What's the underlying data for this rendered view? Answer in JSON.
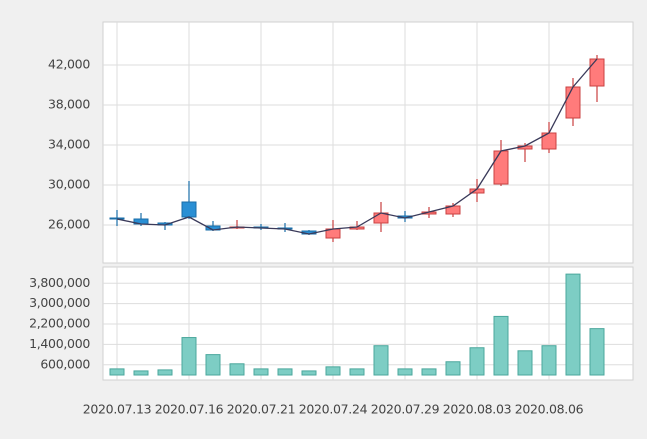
{
  "chart_data": {
    "type": "candlestick",
    "categories": [
      "2020.07.13",
      null,
      null,
      "2020.07.16",
      null,
      null,
      "2020.07.21",
      null,
      null,
      "2020.07.24",
      null,
      null,
      "2020.07.29",
      null,
      null,
      "2020.08.03",
      null,
      null,
      "2020.08.06",
      null,
      null
    ],
    "open": [
      26700,
      26600,
      26200,
      28300,
      25900,
      25700,
      25800,
      25700,
      25400,
      24700,
      25600,
      26200,
      26900,
      27100,
      27100,
      29200,
      30100,
      33600,
      33600,
      36700,
      39900
    ],
    "high": [
      27500,
      27200,
      26300,
      30400,
      26400,
      26500,
      26100,
      26200,
      25500,
      26500,
      26400,
      28300,
      27400,
      27800,
      28200,
      30600,
      34500,
      34200,
      36300,
      40700,
      43000
    ],
    "low": [
      25900,
      25900,
      25500,
      26600,
      25400,
      25600,
      25500,
      25300,
      25000,
      24300,
      25500,
      25300,
      26300,
      26700,
      26800,
      28300,
      29900,
      32300,
      33200,
      35900,
      38300
    ],
    "close": [
      26600,
      26100,
      26000,
      26800,
      25500,
      25800,
      25700,
      25600,
      25100,
      25600,
      25800,
      27200,
      26700,
      27300,
      27900,
      29600,
      33400,
      33900,
      35200,
      39800,
      42600
    ],
    "up_color": "#ff7b7b",
    "down_color": "#2a8fd4",
    "line_color": "#3a3a5a",
    "ylim": [
      22200,
      46300
    ],
    "yticks": [
      {
        "value": 26000,
        "label": "26,000"
      },
      {
        "value": 30000,
        "label": "30,000"
      },
      {
        "value": 34000,
        "label": "34,000"
      },
      {
        "value": 38000,
        "label": "38,000"
      },
      {
        "value": 42000,
        "label": "42,000"
      }
    ],
    "grid": true,
    "volume": {
      "type": "bar",
      "values": [
        440000,
        360000,
        400000,
        1670000,
        1000000,
        640000,
        440000,
        440000,
        360000,
        520000,
        440000,
        1350000,
        440000,
        440000,
        720000,
        1270000,
        2500000,
        1150000,
        1350000,
        4160000,
        2020000
      ],
      "color": "#7dcdc4",
      "ylim": [
        200000,
        4400000
      ],
      "yticks": [
        {
          "value": 600000,
          "label": "600,000"
        },
        {
          "value": 1400000,
          "label": "1,400,000"
        },
        {
          "value": 2200000,
          "label": "2,200,000"
        },
        {
          "value": 3000000,
          "label": "3,000,000"
        },
        {
          "value": 3800000,
          "label": "3,800,000"
        }
      ]
    }
  }
}
